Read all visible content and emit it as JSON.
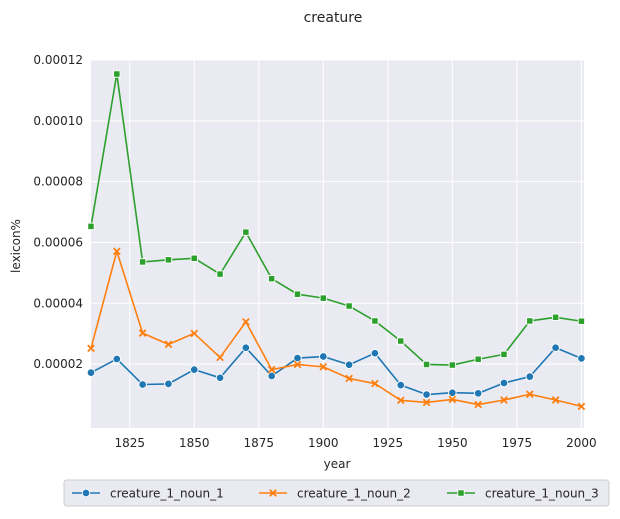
{
  "chart_data": {
    "type": "line",
    "title": "creature",
    "xlabel": "year",
    "ylabel": "lexicon%",
    "xlim": [
      1810,
      2001
    ],
    "ylim": [
      -1e-06,
      0.00012
    ],
    "x_ticks": [
      1825,
      1850,
      1875,
      1900,
      1925,
      1950,
      1975,
      2000
    ],
    "x_tick_labels": [
      "1825",
      "1850",
      "1875",
      "1900",
      "1925",
      "1950",
      "1975",
      "2000"
    ],
    "y_ticks": [
      2e-05,
      4e-05,
      6e-05,
      8e-05,
      0.0001,
      0.00012
    ],
    "y_tick_labels": [
      "0.00002",
      "0.00004",
      "0.00006",
      "0.00008",
      "0.00010",
      "0.00012"
    ],
    "grid": true,
    "legend_position": "bottom-center",
    "x": [
      1810,
      1820,
      1830,
      1840,
      1850,
      1860,
      1870,
      1880,
      1890,
      1900,
      1910,
      1920,
      1930,
      1940,
      1950,
      1960,
      1970,
      1980,
      1990,
      2000
    ],
    "series": [
      {
        "name": "creature_1_noun_1",
        "color": "#1f77b4",
        "marker": "circle",
        "values": [
          1.72e-05,
          2.17e-05,
          1.33e-05,
          1.35e-05,
          1.82e-05,
          1.55e-05,
          2.54e-05,
          1.61e-05,
          2.2e-05,
          2.25e-05,
          1.98e-05,
          2.36e-05,
          1.31e-05,
          1e-05,
          1.06e-05,
          1.04e-05,
          1.38e-05,
          1.59e-05,
          2.54e-05,
          2.19e-05
        ]
      },
      {
        "name": "creature_1_noun_2",
        "color": "#ff7f0e",
        "marker": "x",
        "values": [
          2.52e-05,
          5.71e-05,
          3.02e-05,
          2.65e-05,
          3.01e-05,
          2.22e-05,
          3.39e-05,
          1.82e-05,
          1.99e-05,
          1.91e-05,
          1.53e-05,
          1.36e-05,
          8.1e-06,
          7.4e-06,
          8.4e-06,
          6.7e-06,
          8.2e-06,
          1.01e-05,
          8.2e-06,
          6.1e-06
        ]
      },
      {
        "name": "creature_1_noun_3",
        "color": "#2ca02c",
        "marker": "square",
        "values": [
          6.53e-05,
          0.0001154,
          5.36e-05,
          5.43e-05,
          5.48e-05,
          4.96e-05,
          6.34e-05,
          4.81e-05,
          4.3e-05,
          4.17e-05,
          3.91e-05,
          3.42e-05,
          2.76e-05,
          1.99e-05,
          1.97e-05,
          2.16e-05,
          2.32e-05,
          3.42e-05,
          3.54e-05,
          3.41e-05
        ]
      }
    ]
  }
}
